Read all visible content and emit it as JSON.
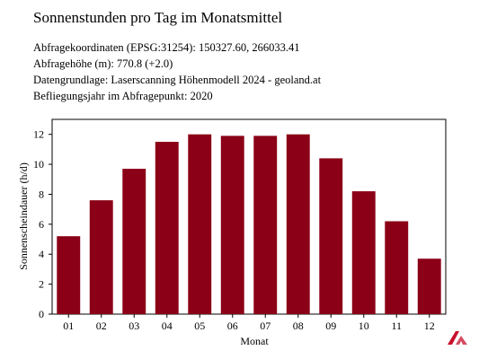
{
  "header": {
    "title": "Sonnenstunden pro Tag im Monatsmittel",
    "lines": [
      "Abfragekoordinaten (EPSG:31254): 150327.60, 266033.41",
      "Abfragehöhe (m): 770.8 (+2.0)",
      "Datengrundlage: Laserscanning Höhenmodell 2024 - geoland.at",
      "Befliegungsjahr im Abfragepunkt: 2020"
    ]
  },
  "chart_data": {
    "type": "bar",
    "categories": [
      "01",
      "02",
      "03",
      "04",
      "05",
      "06",
      "07",
      "08",
      "09",
      "10",
      "11",
      "12"
    ],
    "values": [
      5.2,
      7.6,
      9.7,
      11.5,
      12.0,
      11.9,
      11.9,
      12.0,
      10.4,
      8.2,
      6.2,
      3.7
    ],
    "xlabel": "Monat",
    "ylabel": "Sonnenscheindauer (h/d)",
    "ylim": [
      0,
      13
    ],
    "yticks": [
      0,
      2,
      4,
      6,
      8,
      10,
      12
    ],
    "grid": false,
    "legend": "none",
    "bar_color": "#8b0017"
  },
  "logo": {
    "icon": "logo-icon",
    "color": "#c8102e"
  }
}
